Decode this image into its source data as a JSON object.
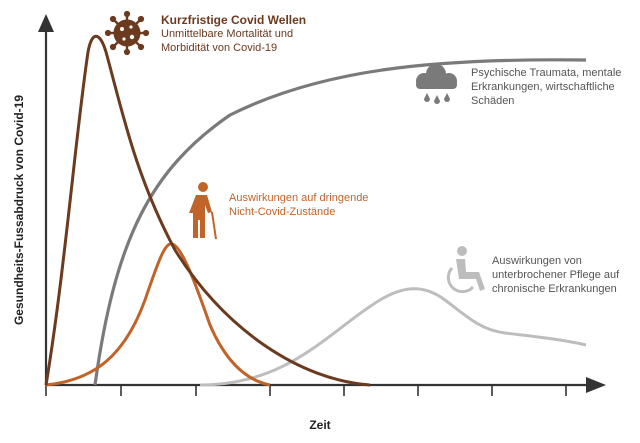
{
  "axes": {
    "y_label": "Gesundheits-Fussabdruck von Covid-19",
    "x_label": "Zeit"
  },
  "annotations": {
    "covid": {
      "title": "Kurzfristige Covid Wellen",
      "line1": "Unmittelbare Mortalität und",
      "line2": "Morbidität von Covid-19",
      "icon": "virus-icon",
      "color": "#6b3a1f"
    },
    "urgent": {
      "line1": "Auswirkungen auf dringende",
      "line2": "Nicht-Covid-Zustände",
      "icon": "elderly-person-icon",
      "color": "#c0642a"
    },
    "psych": {
      "line1": "Psychische Traumata, mentale",
      "line2": "Erkrankungen, wirtschaftliche",
      "line3": "Schäden",
      "icon": "rain-cloud-icon",
      "color": "#7a7a7a"
    },
    "chronic": {
      "line1": "Auswirkungen von",
      "line2": "unterbrochener Pflege auf",
      "line3": "chronische Erkrankungen",
      "icon": "wheelchair-icon",
      "color": "#bdbdbd"
    }
  }
}
